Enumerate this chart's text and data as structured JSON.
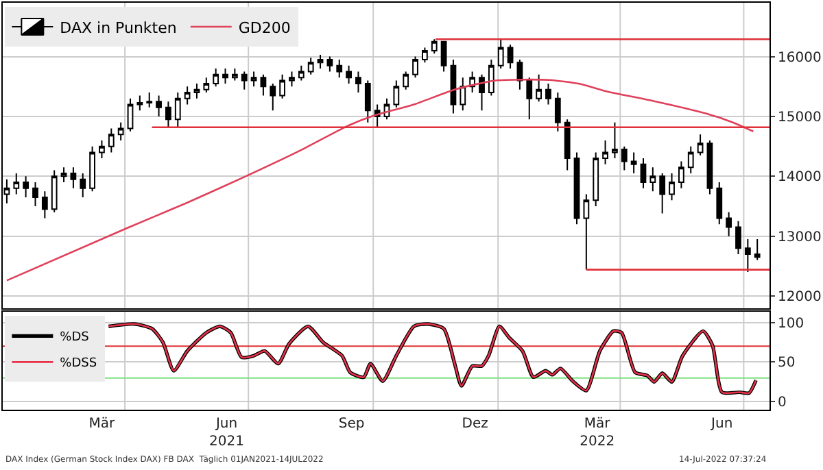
{
  "chart_data": [
    {
      "type": "candlestick",
      "legend": "top left",
      "grid": true,
      "tick_labels": "y",
      "xlim": [
        "2021-01-01",
        "2022-07-20"
      ],
      "ylim": [
        11800,
        16900
      ],
      "yticks": [
        12000,
        13000,
        14000,
        15000,
        16000
      ],
      "xticks": [
        {
          "value": "2021-04-01",
          "label": null
        },
        {
          "value": "2021-07-01",
          "label": null
        },
        {
          "value": "2021-10-01",
          "label": null
        },
        {
          "value": "2022-01-01",
          "label": null
        },
        {
          "value": "2022-04-01",
          "label": null
        },
        {
          "value": "2022-07-01",
          "label": null
        }
      ],
      "x": [
        "2021-01-04",
        "2021-01-11",
        "2021-01-18",
        "2021-01-25",
        "2021-02-01",
        "2021-02-08",
        "2021-02-15",
        "2021-02-22",
        "2021-03-01",
        "2021-03-08",
        "2021-03-15",
        "2021-03-22",
        "2021-03-29",
        "2021-04-05",
        "2021-04-12",
        "2021-04-19",
        "2021-04-26",
        "2021-05-03",
        "2021-05-10",
        "2021-05-17",
        "2021-05-24",
        "2021-05-31",
        "2021-06-07",
        "2021-06-14",
        "2021-06-21",
        "2021-06-28",
        "2021-07-05",
        "2021-07-12",
        "2021-07-19",
        "2021-07-26",
        "2021-08-02",
        "2021-08-09",
        "2021-08-16",
        "2021-08-23",
        "2021-08-30",
        "2021-09-06",
        "2021-09-13",
        "2021-09-20",
        "2021-09-27",
        "2021-10-04",
        "2021-10-11",
        "2021-10-18",
        "2021-10-25",
        "2021-11-01",
        "2021-11-08",
        "2021-11-15",
        "2021-11-22",
        "2021-11-29",
        "2021-12-06",
        "2021-12-13",
        "2021-12-20",
        "2021-12-27",
        "2022-01-03",
        "2022-01-10",
        "2022-01-17",
        "2022-01-24",
        "2022-01-31",
        "2022-02-07",
        "2022-02-14",
        "2022-02-21",
        "2022-02-28",
        "2022-03-07",
        "2022-03-14",
        "2022-03-21",
        "2022-03-28",
        "2022-04-04",
        "2022-04-11",
        "2022-04-18",
        "2022-04-25",
        "2022-05-02",
        "2022-05-09",
        "2022-05-16",
        "2022-05-23",
        "2022-05-30",
        "2022-06-06",
        "2022-06-13",
        "2022-06-20",
        "2022-06-27",
        "2022-07-04",
        "2022-07-11"
      ],
      "series": [
        {
          "type": "candlestick",
          "name": "DAX in Punkten",
          "color": "#000000",
          "ohlc": [
            [
              13700,
              13950,
              13550,
              13800
            ],
            [
              13800,
              14050,
              13700,
              13900
            ],
            [
              13900,
              14000,
              13650,
              13800
            ],
            [
              13800,
              13900,
              13500,
              13650
            ],
            [
              13650,
              13750,
              13300,
              13450
            ],
            [
              13450,
              14100,
              13400,
              14000
            ],
            [
              14000,
              14150,
              13900,
              14050
            ],
            [
              14050,
              14150,
              13800,
              13950
            ],
            [
              13950,
              14050,
              13650,
              13800
            ],
            [
              13800,
              14500,
              13750,
              14400
            ],
            [
              14400,
              14600,
              14300,
              14500
            ],
            [
              14500,
              14800,
              14400,
              14700
            ],
            [
              14700,
              14900,
              14600,
              14800
            ],
            [
              14800,
              15300,
              14750,
              15200
            ],
            [
              15200,
              15350,
              15100,
              15230
            ],
            [
              15230,
              15400,
              15150,
              15250
            ],
            [
              15250,
              15350,
              15000,
              15150
            ],
            [
              15150,
              15250,
              14820,
              14950
            ],
            [
              14950,
              15400,
              14820,
              15300
            ],
            [
              15300,
              15500,
              15200,
              15400
            ],
            [
              15400,
              15550,
              15300,
              15450
            ],
            [
              15450,
              15650,
              15400,
              15550
            ],
            [
              15550,
              15800,
              15500,
              15700
            ],
            [
              15700,
              15800,
              15550,
              15650
            ],
            [
              15650,
              15800,
              15600,
              15700
            ],
            [
              15700,
              15750,
              15450,
              15600
            ],
            [
              15600,
              15750,
              15500,
              15650
            ],
            [
              15650,
              15700,
              15350,
              15500
            ],
            [
              15500,
              15550,
              15100,
              15350
            ],
            [
              15350,
              15700,
              15300,
              15600
            ],
            [
              15600,
              15750,
              15500,
              15650
            ],
            [
              15650,
              15850,
              15600,
              15750
            ],
            [
              15750,
              15980,
              15700,
              15900
            ],
            [
              15900,
              16030,
              15800,
              15950
            ],
            [
              15950,
              16000,
              15750,
              15850
            ],
            [
              15850,
              15950,
              15650,
              15750
            ],
            [
              15750,
              15850,
              15550,
              15650
            ],
            [
              15650,
              15750,
              15400,
              15550
            ],
            [
              15550,
              15600,
              14900,
              15100
            ],
            [
              15100,
              15200,
              14820,
              15000
            ],
            [
              15000,
              15300,
              14950,
              15200
            ],
            [
              15200,
              15600,
              15150,
              15500
            ],
            [
              15500,
              15750,
              15450,
              15700
            ],
            [
              15700,
              16000,
              15650,
              15950
            ],
            [
              15950,
              16150,
              15900,
              16100
            ],
            [
              16100,
              16290,
              16050,
              16250
            ],
            [
              16250,
              16250,
              15750,
              15850
            ],
            [
              15850,
              15950,
              15050,
              15200
            ],
            [
              15200,
              15650,
              15100,
              15500
            ],
            [
              15500,
              15750,
              15400,
              15650
            ],
            [
              15650,
              15700,
              15100,
              15400
            ],
            [
              15400,
              15950,
              15350,
              15850
            ],
            [
              15850,
              16290,
              15800,
              16150
            ],
            [
              16150,
              16200,
              15800,
              15900
            ],
            [
              15900,
              15950,
              15450,
              15600
            ],
            [
              15600,
              15650,
              14950,
              15300
            ],
            [
              15300,
              15700,
              15250,
              15450
            ],
            [
              15450,
              15550,
              15200,
              15300
            ],
            [
              15300,
              15400,
              14750,
              14900
            ],
            [
              14900,
              14950,
              14100,
              14300
            ],
            [
              14300,
              14400,
              13200,
              13300
            ],
            [
              13300,
              13700,
              12440,
              13600
            ],
            [
              13600,
              14400,
              13500,
              14300
            ],
            [
              14300,
              14600,
              14200,
              14400
            ],
            [
              14400,
              14900,
              14300,
              14450
            ],
            [
              14450,
              14500,
              14100,
              14250
            ],
            [
              14250,
              14400,
              14050,
              14200
            ],
            [
              14200,
              14300,
              13800,
              13900
            ],
            [
              13900,
              14150,
              13750,
              14000
            ],
            [
              14000,
              14050,
              13380,
              13700
            ],
            [
              13700,
              14050,
              13600,
              13900
            ],
            [
              13900,
              14250,
              13800,
              14150
            ],
            [
              14150,
              14500,
              14050,
              14400
            ],
            [
              14400,
              14700,
              14350,
              14550
            ],
            [
              14550,
              14600,
              13700,
              13800
            ],
            [
              13800,
              13900,
              13200,
              13300
            ],
            [
              13300,
              13400,
              13000,
              13150
            ],
            [
              13150,
              13250,
              12700,
              12800
            ],
            [
              12800,
              12950,
              12400,
              12700
            ],
            [
              12700,
              12950,
              12600,
              12650
            ]
          ]
        },
        {
          "type": "line",
          "name": "GD200",
          "color": "#e0405a",
          "x": [
            "2021-01-04",
            "2021-04-01",
            "2021-05-17",
            "2021-06-29",
            "2021-08-09",
            "2021-09-11",
            "2021-10-01",
            "2021-10-31",
            "2021-11-30",
            "2021-12-30",
            "2022-02-08",
            "2022-03-03",
            "2022-03-20",
            "2022-04-29",
            "2022-06-03",
            "2022-06-23",
            "2022-07-08"
          ],
          "values": [
            12260,
            13120,
            13560,
            14000,
            14440,
            14830,
            15010,
            15200,
            15450,
            15600,
            15610,
            15540,
            15430,
            15240,
            15050,
            14900,
            14750
          ]
        },
        {
          "type": "line",
          "color": "#e0303a",
          "x": [
            "2021-11-16",
            "2022-07-20"
          ],
          "values": [
            16290,
            16290
          ]
        },
        {
          "type": "line",
          "color": "#e0303a",
          "x": [
            "2021-04-21",
            "2022-07-20"
          ],
          "values": [
            14820,
            14820
          ]
        },
        {
          "type": "line",
          "color": "#e0303a",
          "x": [
            "2022-03-07",
            "2022-07-20"
          ],
          "values": [
            12440,
            12440
          ]
        }
      ]
    },
    {
      "type": "line",
      "legend": "top left",
      "grid": true,
      "xlim": [
        "2021-01-01",
        "2022-07-20"
      ],
      "ylim": [
        -10,
        113
      ],
      "yticks": [
        0,
        50,
        100
      ],
      "xticks": [
        {
          "value": "2021-04-01",
          "label": null
        },
        {
          "value": "2021-07-01",
          "label": null
        },
        {
          "value": "2021-10-01",
          "label": null
        },
        {
          "value": "2022-01-01",
          "label": null
        },
        {
          "value": "2022-04-01",
          "label": null
        },
        {
          "value": "2022-07-01",
          "label": null
        },
        {
          "value": "2021-03-15",
          "label": "Mär"
        },
        {
          "value": "2021-06-15",
          "label": "Jun\n2021"
        },
        {
          "value": "2021-09-15",
          "label": "Sep"
        },
        {
          "value": "2021-12-15",
          "label": "Dez"
        },
        {
          "value": "2022-03-15",
          "label": "Mär\n2022"
        },
        {
          "value": "2022-06-15",
          "label": "Jun"
        }
      ],
      "x": [
        "2021-03-20",
        "2021-04-08",
        "2021-04-21",
        "2021-04-29",
        "2021-05-07",
        "2021-05-17",
        "2021-05-31",
        "2021-06-10",
        "2021-06-18",
        "2021-06-26",
        "2021-07-05",
        "2021-07-13",
        "2021-07-23",
        "2021-07-31",
        "2021-08-14",
        "2021-08-25",
        "2021-09-08",
        "2021-09-14",
        "2021-09-24",
        "2021-09-29",
        "2021-10-08",
        "2021-10-18",
        "2021-10-31",
        "2021-11-10",
        "2021-11-22",
        "2021-11-30",
        "2021-12-05",
        "2021-12-13",
        "2021-12-20",
        "2021-12-25",
        "2022-01-02",
        "2022-01-09",
        "2022-01-19",
        "2022-01-27",
        "2022-02-05",
        "2022-02-10",
        "2022-02-16",
        "2022-02-25",
        "2022-03-07",
        "2022-03-17",
        "2022-03-27",
        "2022-04-02",
        "2022-04-12",
        "2022-04-21",
        "2022-04-26",
        "2022-05-02",
        "2022-05-09",
        "2022-05-17",
        "2022-06-01",
        "2022-06-08",
        "2022-06-15",
        "2022-06-28",
        "2022-07-05",
        "2022-07-10"
      ],
      "series": [
        {
          "name": "%DS",
          "color": "#000000",
          "values": [
            95,
            98,
            92,
            75,
            39,
            64,
            87,
            95,
            87,
            56,
            58,
            64,
            48,
            73,
            95,
            75,
            58,
            37,
            31,
            48,
            26,
            58,
            95,
            98,
            92,
            48,
            20,
            45,
            45,
            58,
            95,
            81,
            64,
            31,
            39,
            34,
            42,
            26,
            14,
            64,
            89,
            87,
            37,
            33,
            25,
            36,
            25,
            58,
            89,
            71,
            12,
            12,
            11,
            27
          ]
        },
        {
          "name": "%DSS",
          "color": "#e8324a",
          "values": [
            95,
            98,
            92,
            75,
            39,
            64,
            87,
            95,
            87,
            56,
            58,
            64,
            48,
            73,
            95,
            75,
            58,
            37,
            31,
            48,
            26,
            58,
            95,
            98,
            92,
            48,
            20,
            45,
            45,
            58,
            95,
            81,
            64,
            31,
            39,
            34,
            42,
            26,
            14,
            64,
            89,
            87,
            37,
            33,
            25,
            36,
            25,
            58,
            89,
            71,
            12,
            12,
            11,
            27
          ]
        }
      ],
      "ref_lines": [
        {
          "axis": "y",
          "value": 70,
          "color": "#e03030"
        },
        {
          "axis": "y",
          "value": 30,
          "color": "#80e080"
        }
      ],
      "annotations": [
        "DAX Index (German Stock Index DAX) FB DAX  Täglich 01JAN2021-14JUL2022",
        "14-Jul-2022 07:37:24"
      ]
    }
  ]
}
